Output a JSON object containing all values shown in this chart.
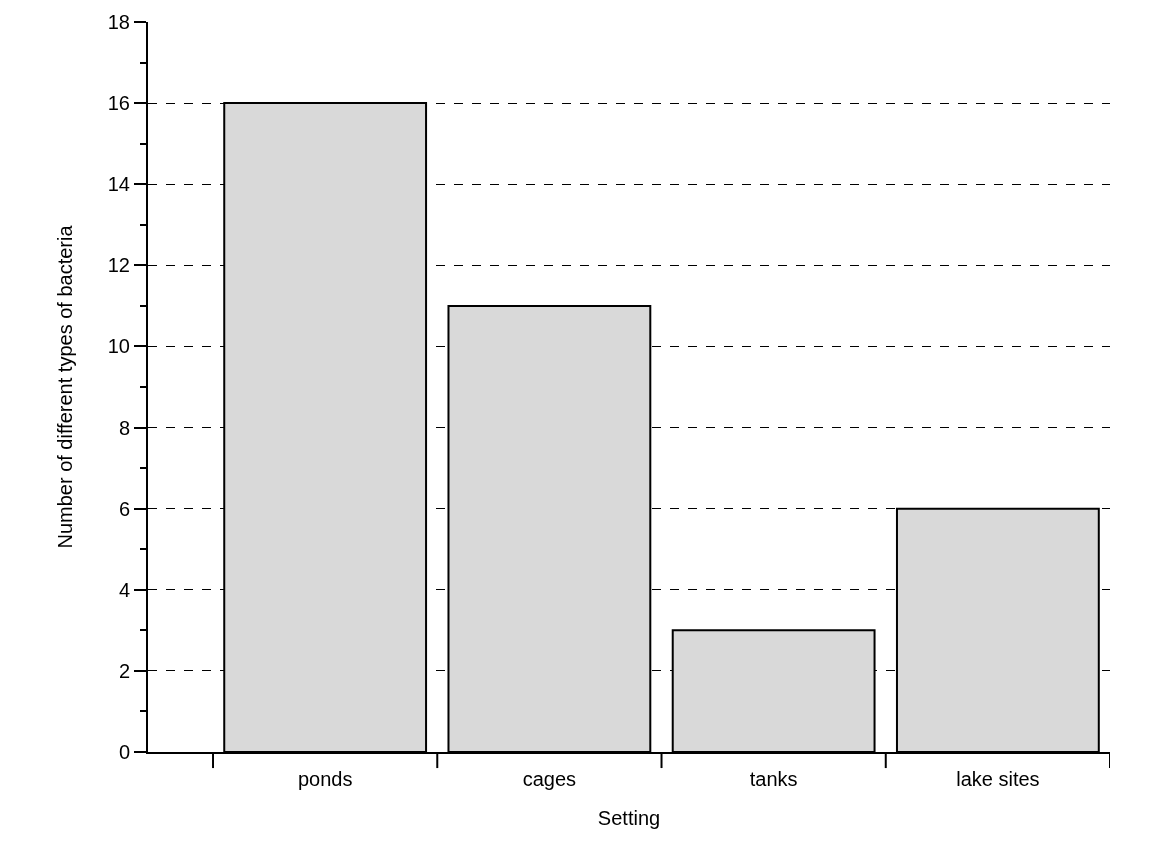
{
  "chart_data": {
    "type": "bar",
    "xlabel": "Setting",
    "ylabel": "Number of different types of bacteria",
    "categories": [
      "ponds",
      "cages",
      "tanks",
      "lake sites"
    ],
    "values": [
      16,
      11,
      3,
      6
    ],
    "color": "#d9d9d9",
    "ylim": [
      0,
      18
    ],
    "yticks": [
      0,
      {
        "value": 1,
        "label": null
      },
      2,
      {
        "value": 3,
        "label": null
      },
      4,
      {
        "value": 5,
        "label": null
      },
      6,
      {
        "value": 7,
        "label": null
      },
      8,
      {
        "value": 9,
        "label": null
      },
      10,
      {
        "value": 11,
        "label": null
      },
      12,
      {
        "value": 13,
        "label": null
      },
      14,
      {
        "value": 15,
        "label": null
      },
      16,
      {
        "value": 17,
        "label": null
      },
      18
    ],
    "grid": "y"
  }
}
